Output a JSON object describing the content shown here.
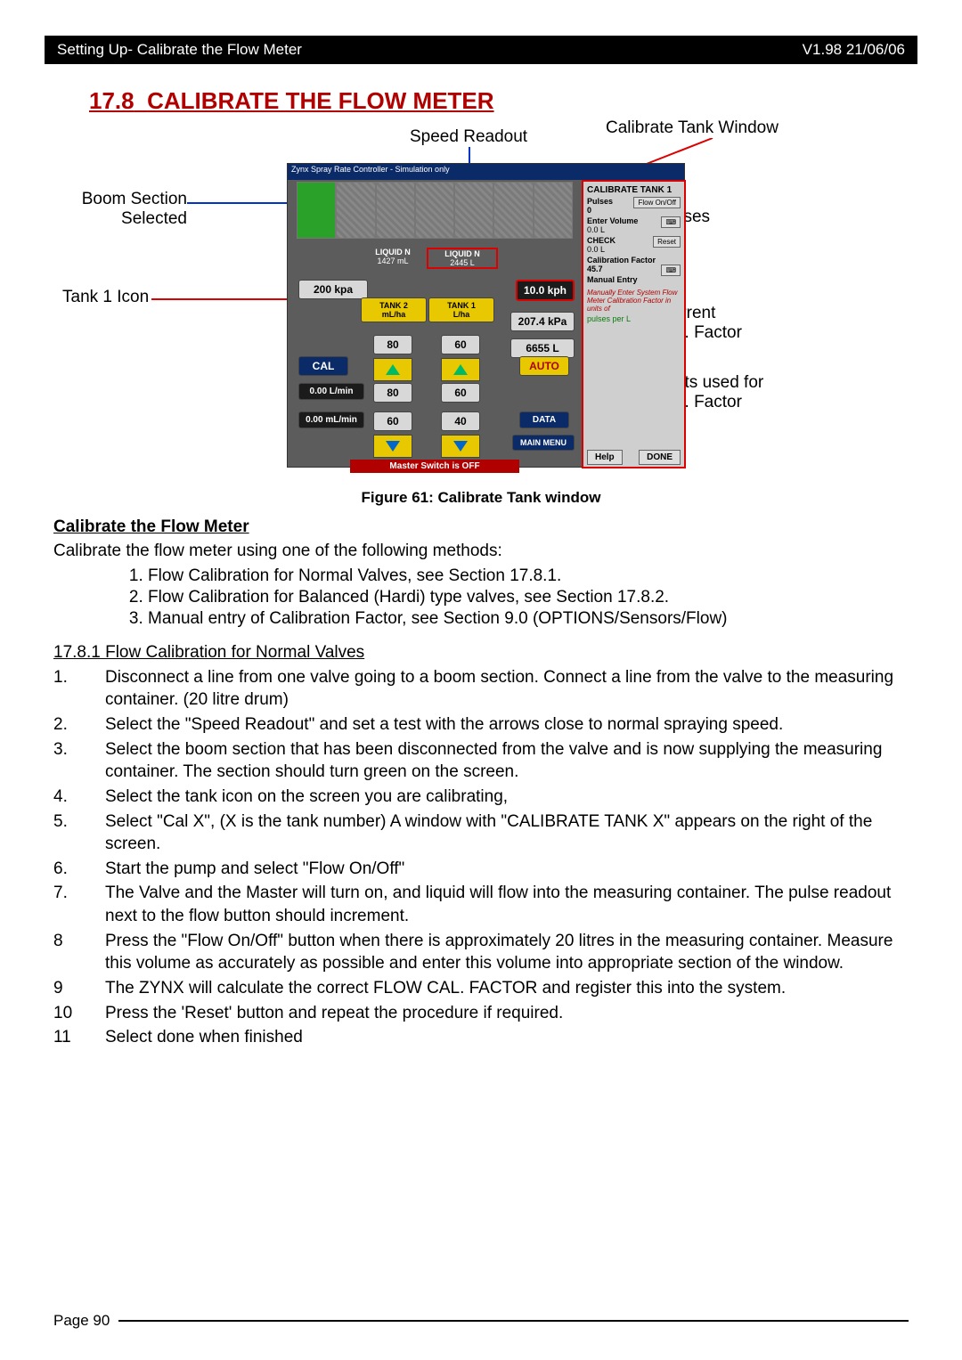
{
  "header": {
    "left": "Setting Up- Calibrate the Flow Meter",
    "right": "V1.98 21/06/06"
  },
  "section": {
    "num": "17.8",
    "title": "CALIBRATE THE FLOW METER"
  },
  "callouts": {
    "speed": "Speed Readout",
    "calwin": "Calibrate Tank Window",
    "boom": "Boom Section\nSelected",
    "tank1": "Tank 1 Icon",
    "pulses": "Pulses",
    "curfac": "Current\nCal. Factor",
    "units": "Units used for\nCal. Factor"
  },
  "app": {
    "title": "Zynx Spray Rate Controller  - Simulation only",
    "liq1_hdr": "LIQUID N",
    "liq1_sub": "1427 mL",
    "liq2_hdr": "LIQUID N",
    "liq2_sub": "2445 L",
    "kpa": "200 kpa",
    "speed": "10.0 kph",
    "pressure": "207.4 kPa",
    "total": "6655 L",
    "t2_unit": "TANK 2\nmL/ha",
    "t1_unit": "TANK 1\nL/ha",
    "r2a": "80",
    "r1a": "60",
    "r2b": "80",
    "r1b": "60",
    "r2c": "60",
    "r1c": "40",
    "cal": "CAL",
    "auto": "AUTO",
    "data": "DATA",
    "mmenu": "MAIN MENU",
    "lrate": "0.00 L/min",
    "lrate2": "0.00 mL/min",
    "master": "Master Switch is OFF"
  },
  "panel": {
    "title": "CALIBRATE TANK 1",
    "pulses_lbl": "Pulses",
    "flow_btn": "Flow On/Off",
    "pulses_val": "0",
    "vol_lbl": "Enter Volume",
    "vol_val": "0.0",
    "vol_unit": "L",
    "chk_lbl": "CHECK",
    "chk_val": "0.0",
    "chk_unit": "L",
    "reset": "Reset",
    "fac_lbl": "Calibration Factor",
    "fac_val": "45.7",
    "man_lbl": "Manual Entry",
    "note": "Manually Enter System Flow Meter Calibration Factor in units of",
    "units": "pulses per L",
    "help": "Help",
    "done": "DONE"
  },
  "caption": "Figure 61:  Calibrate Tank window",
  "body": {
    "h3": "Calibrate the Flow Meter",
    "intro": "Calibrate the flow meter using one of the following methods:",
    "methods": [
      "Flow Calibration for Normal Valves, see Section 17.8.1.",
      "Flow Calibration for Balanced (Hardi) type valves, see Section 17.8.2.",
      "Manual entry of Calibration Factor, see Section 9.0 (OPTIONS/Sensors/Flow)"
    ],
    "sub_h": "17.8.1  Flow Calibration for Normal Valves",
    "steps": [
      [
        "1.",
        "Disconnect a line from one valve going to a boom section. Connect a line from the valve to the measuring container. (20 litre drum)"
      ],
      [
        "2.",
        "Select the \"Speed Readout\" and set a test with the arrows close to normal spraying speed."
      ],
      [
        "3.",
        "Select the boom section that has been disconnected from the valve and is now supplying the measuring container. The section should turn green on the screen."
      ],
      [
        "4.",
        "Select the tank icon on the screen you are calibrating,"
      ],
      [
        "5.",
        "Select \"Cal X\", (X is the tank number) A window with \"CALIBRATE TANK X\" appears on the right of the screen."
      ],
      [
        "6.",
        "Start the pump and select \"Flow On/Off\""
      ],
      [
        "7.",
        "The Valve and the Master will turn on, and liquid will flow into the measuring container.  The pulse readout next to the flow button should increment."
      ],
      [
        "8",
        "Press the \"Flow On/Off\" button when there is approximately 20 litres in the measuring container. Measure this volume as accurately as possible and enter this volume into appropriate section of the window."
      ],
      [
        "9",
        "The ZYNX will calculate the correct FLOW CAL. FACTOR and register this into the system."
      ],
      [
        "10",
        "Press the 'Reset' button and repeat the procedure if required."
      ],
      [
        "11",
        "Select done when finished"
      ]
    ]
  },
  "footer": {
    "page": "Page  90"
  },
  "colors": {
    "accent": "#b00000",
    "nav": "#0b2a68",
    "green": "#2aa22a",
    "yellow": "#e8c800"
  }
}
